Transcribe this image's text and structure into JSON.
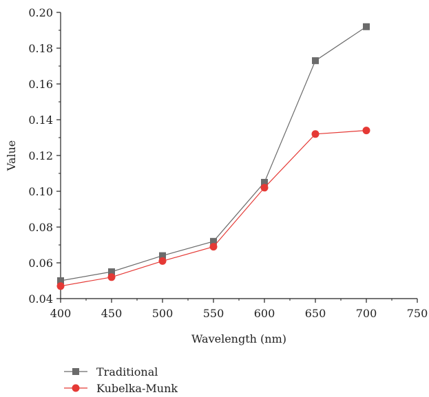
{
  "chart_data": {
    "type": "line",
    "title": "",
    "xlabel": "Wavelength (nm)",
    "ylabel": "Value",
    "xlim": [
      400,
      750
    ],
    "ylim": [
      0.04,
      0.2
    ],
    "x_ticks": [
      "400",
      "450",
      "500",
      "550",
      "600",
      "650",
      "700",
      "750"
    ],
    "y_ticks": [
      "0.04",
      "0.06",
      "0.08",
      "0.10",
      "0.12",
      "0.14",
      "0.16",
      "0.18",
      "0.20"
    ],
    "grid": false,
    "legend_position": "bottom-left, below plot",
    "x": [
      400,
      450,
      500,
      550,
      600,
      650,
      700
    ],
    "series": [
      {
        "name": "Traditional",
        "marker": "square",
        "color": "#6b6b6b",
        "values": [
          0.05,
          0.055,
          0.064,
          0.072,
          0.105,
          0.173,
          0.192
        ]
      },
      {
        "name": "Kubelka-Munk",
        "marker": "circle",
        "color": "#e53935",
        "values": [
          0.047,
          0.052,
          0.061,
          0.069,
          0.102,
          0.132,
          0.134
        ]
      }
    ]
  }
}
